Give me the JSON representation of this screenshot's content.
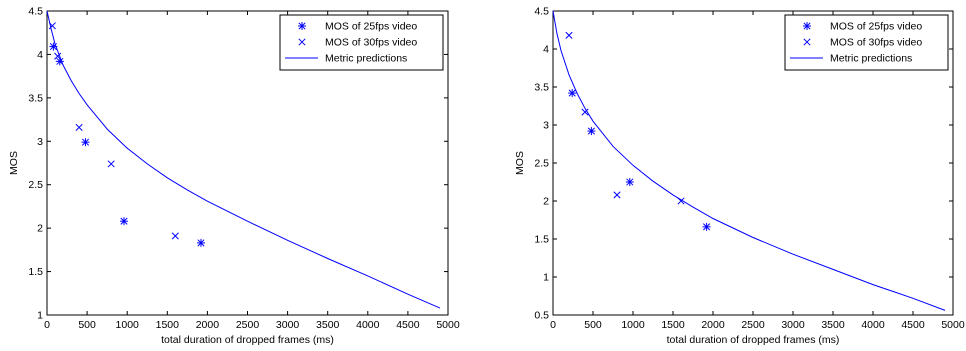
{
  "colors": {
    "series": "#0000ff",
    "axis": "#000000",
    "background": "#ffffff"
  },
  "chart_data": [
    {
      "type": "scatter",
      "xlabel": "total duration of dropped frames (ms)",
      "ylabel": "MOS",
      "xlim": [
        0,
        5000
      ],
      "ylim": [
        1,
        4.5
      ],
      "xticks": [
        "0",
        "500",
        "1000",
        "1500",
        "2000",
        "2500",
        "3000",
        "3500",
        "4000",
        "4500",
        "5000"
      ],
      "yticks": [
        "1",
        "1.5",
        "2",
        "2.5",
        "3",
        "3.5",
        "4",
        "4.5"
      ],
      "grid": false,
      "legend_position": "top-right",
      "series": [
        {
          "name": "MOS of 25fps video",
          "marker": "asterisk",
          "points": [
            [
              80,
              4.09
            ],
            [
              160,
              3.92
            ],
            [
              480,
              2.99
            ],
            [
              960,
              2.08
            ],
            [
              1920,
              1.83
            ]
          ]
        },
        {
          "name": "MOS of 30fps video",
          "marker": "x",
          "points": [
            [
              67,
              4.33
            ],
            [
              133,
              3.98
            ],
            [
              400,
              3.16
            ],
            [
              800,
              2.74
            ],
            [
              1600,
              1.91
            ]
          ]
        },
        {
          "name": "Metric predictions",
          "marker": "line",
          "points": [
            [
              0,
              4.5
            ],
            [
              50,
              4.3
            ],
            [
              100,
              4.12
            ],
            [
              200,
              3.88
            ],
            [
              300,
              3.7
            ],
            [
              400,
              3.55
            ],
            [
              500,
              3.42
            ],
            [
              750,
              3.14
            ],
            [
              1000,
              2.92
            ],
            [
              1250,
              2.74
            ],
            [
              1500,
              2.58
            ],
            [
              1750,
              2.44
            ],
            [
              2000,
              2.31
            ],
            [
              2500,
              2.08
            ],
            [
              3000,
              1.86
            ],
            [
              3500,
              1.65
            ],
            [
              4000,
              1.45
            ],
            [
              4500,
              1.24
            ],
            [
              4900,
              1.08
            ]
          ]
        }
      ]
    },
    {
      "type": "scatter",
      "xlabel": "total duration of dropped frames (ms)",
      "ylabel": "MOS",
      "xlim": [
        0,
        5000
      ],
      "ylim": [
        0.5,
        4.5
      ],
      "xticks": [
        "0",
        "500",
        "1000",
        "1500",
        "2000",
        "2500",
        "3000",
        "3500",
        "4000",
        "4500",
        "5000"
      ],
      "yticks": [
        "0.5",
        "1",
        "1.5",
        "2",
        "2.5",
        "3",
        "3.5",
        "4",
        "4.5"
      ],
      "grid": false,
      "legend_position": "top-right",
      "series": [
        {
          "name": "MOS of 25fps video",
          "marker": "asterisk",
          "points": [
            [
              240,
              3.42
            ],
            [
              480,
              2.92
            ],
            [
              960,
              2.25
            ],
            [
              1920,
              1.66
            ]
          ]
        },
        {
          "name": "MOS of 30fps video",
          "marker": "x",
          "points": [
            [
              200,
              4.18
            ],
            [
              400,
              3.17
            ],
            [
              800,
              2.08
            ],
            [
              1600,
              2.0
            ]
          ]
        },
        {
          "name": "Metric predictions",
          "marker": "line",
          "points": [
            [
              0,
              4.5
            ],
            [
              50,
              4.2
            ],
            [
              100,
              3.98
            ],
            [
              200,
              3.66
            ],
            [
              300,
              3.42
            ],
            [
              400,
              3.22
            ],
            [
              500,
              3.05
            ],
            [
              750,
              2.72
            ],
            [
              1000,
              2.47
            ],
            [
              1250,
              2.26
            ],
            [
              1500,
              2.08
            ],
            [
              1750,
              1.92
            ],
            [
              2000,
              1.77
            ],
            [
              2500,
              1.52
            ],
            [
              3000,
              1.3
            ],
            [
              3500,
              1.1
            ],
            [
              4000,
              0.9
            ],
            [
              4500,
              0.72
            ],
            [
              4900,
              0.56
            ]
          ]
        }
      ]
    }
  ]
}
